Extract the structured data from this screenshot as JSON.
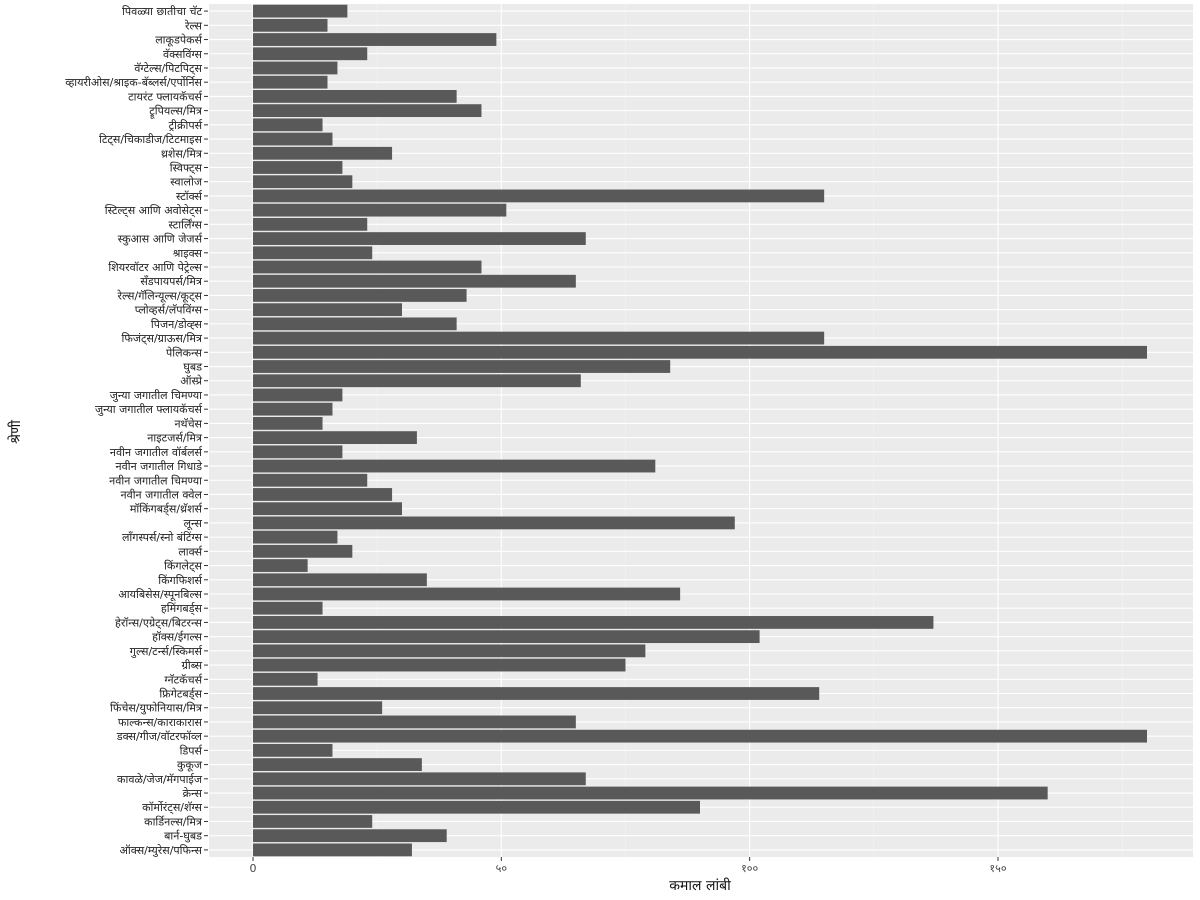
{
  "chart_data": {
    "type": "bar",
    "orientation": "horizontal",
    "xlabel": "कमाल लांबी",
    "ylabel": "श्रेणी",
    "xlim": [
      0,
      185
    ],
    "x_ticks": [
      0,
      50,
      100,
      150
    ],
    "x_tick_labels": [
      "0",
      "५०",
      "१००",
      "१५०"
    ],
    "grid": true,
    "colors": {
      "bar": "#595959",
      "panel": "#ebebeb",
      "grid": "#ffffff"
    },
    "categories": [
      "पिवळ्या छातीचा चॅट",
      "रेल्स",
      "लाकूडपेकर्स",
      "वॅक्सविंग्स",
      "वॅग्टेल्स/पिटपिट्स",
      "व्हायरीओस/श्राइक-बॅब्लर्स/एर्पोर्निस",
      "टायरंट फ्लायकॅचर्स",
      "ट्रूपियल्स/मित्र",
      "ट्रीक्रीपर्स",
      "टिट्स/चिकाडीज/टिटमाइस",
      "थ्रशेस/मित्र",
      "स्विफ्ट्स",
      "स्वालोज",
      "स्टॉर्क्स",
      "स्टिल्ट्स आणि अवोसेट्स",
      "स्टार्लिंग्स",
      "स्कुआस आणि जेजर्स",
      "श्राइक्स",
      "शियरवॉटर आणि पेट्रेल्स",
      "सॅंडपायपर्स/मित्र",
      "रेल्स/गॅलिन्यूल्स/कूट्स",
      "प्लोव्हर्स/लॅपविंग्स",
      "पिजन/डोव्ह्स",
      "फिजंट्स/ग्राऊस/मित्र",
      "पेलिकन्स",
      "घुबड",
      "ऑस्प्रे",
      "जुन्या जगातील चिमण्या",
      "जुन्या जगातील फ्लायकॅचर्स",
      "नथॅचेस",
      "नाइटजर्स/मित्र",
      "नवीन जगातील वॉर्बलर्स",
      "नवीन जगातील गिधाडे",
      "नवीन जगातील चिमण्या",
      "नवीन जगातील क्वेल",
      "मॉकिंगबर्ड्स/थ्रॅशर्स",
      "लून्स",
      "लॉंगस्पर्स/स्नो बंटिंग्स",
      "लार्क्स",
      "किंगलेट्स",
      "किंगफिशर्स",
      "आयबिसेस/स्पूनबिल्स",
      "हमिंगबर्ड्स",
      "हेरॉन्स/एग्रेट्स/बिटरन्स",
      "हॉक्स/ईगल्स",
      "गुल्स/टर्न्स/स्किमर्स",
      "ग्रीब्स",
      "ग्नॅटकॅचर्स",
      "फ्रिगेटबर्ड्स",
      "फिंचेस/युफोनियास/मित्र",
      "फाल्कन्स/काराकारास",
      "डक्स/गीज/वॉटरफॉव्ल",
      "डिपर्स",
      "कुकूज",
      "कावळे/जेज/मॅगपाईज",
      "क्रेन्स",
      "कॉर्मोरंट्स/शॅग्स",
      "कार्डिनल्स/मित्र",
      "बार्न-घुबड",
      "ऑक्स/म्युरेस/पफिन्स"
    ],
    "values": [
      19,
      15,
      49,
      23,
      17,
      15,
      41,
      46,
      14,
      16,
      28,
      18,
      20,
      115,
      51,
      23,
      67,
      24,
      46,
      65,
      43,
      30,
      41,
      115,
      180,
      84,
      66,
      18,
      16,
      14,
      33,
      18,
      81,
      23,
      28,
      30,
      97,
      17,
      20,
      11,
      35,
      86,
      14,
      137,
      102,
      79,
      75,
      13,
      114,
      26,
      65,
      180,
      16,
      34,
      67,
      160,
      90,
      24,
      39,
      32
    ]
  }
}
